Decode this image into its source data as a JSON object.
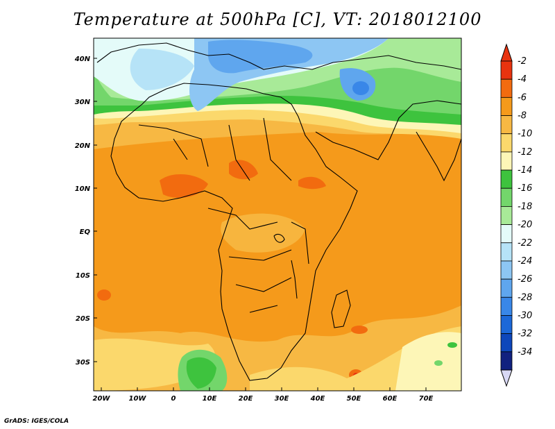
{
  "title": "Temperature at 500hPa [C], VT: 2018012100",
  "credit": "GrADS: IGES/COLA",
  "lat_ticks": [
    "40N",
    "30N",
    "20N",
    "10N",
    "EQ",
    "10S",
    "20S",
    "30S"
  ],
  "lon_ticks": [
    "20W",
    "10W",
    "0",
    "10E",
    "20E",
    "30E",
    "40E",
    "50E",
    "60E",
    "70E"
  ],
  "colorbar": {
    "labels": [
      "-2",
      "-4",
      "-6",
      "-8",
      "-10",
      "-12",
      "-14",
      "-16",
      "-18",
      "-20",
      "-22",
      "-24",
      "-26",
      "-28",
      "-30",
      "-32",
      "-34"
    ],
    "colors": [
      "#e8330f",
      "#f26b0f",
      "#f59a1b",
      "#f7b843",
      "#fbd86c",
      "#fdf6b7",
      "#3ec33e",
      "#73d66b",
      "#a8ea98",
      "#e4fbf9",
      "#b6e3f7",
      "#8dc6f3",
      "#5fa6ee",
      "#3987e8",
      "#1c68d8",
      "#0e47bb",
      "#11217f"
    ],
    "top_arrow_color": "#e8330f",
    "bottom_arrow_color": "#d8d8f5"
  }
}
